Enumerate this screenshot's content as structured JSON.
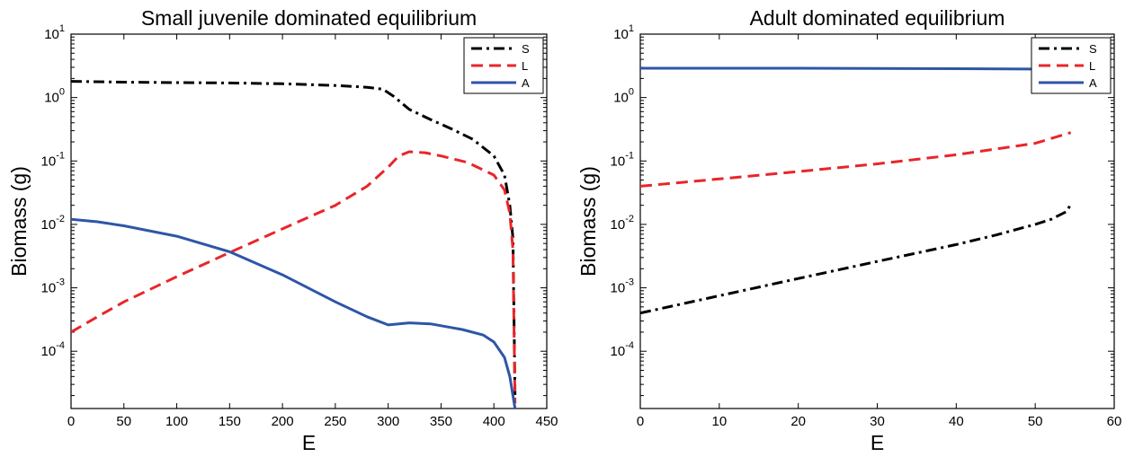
{
  "chart_data": [
    {
      "type": "line",
      "title": "Small juvenile dominated equilibrium",
      "xlabel": "E",
      "ylabel": "Biomass (g)",
      "xlim": [
        0,
        450
      ],
      "xticks": [
        "0",
        "50",
        "100",
        "150",
        "200",
        "250",
        "300",
        "350",
        "400",
        "450"
      ],
      "yscale": "log",
      "ylim": [
        1.25e-05,
        10
      ],
      "ytick_labels": [
        {
          "base": "10",
          "exp": "1",
          "value": 10
        },
        {
          "base": "10",
          "exp": "0",
          "value": 1
        },
        {
          "base": "10",
          "exp": "-1",
          "value": 0.1
        },
        {
          "base": "10",
          "exp": "-2",
          "value": 0.01
        },
        {
          "base": "10",
          "exp": "-3",
          "value": 0.001
        },
        {
          "base": "10",
          "exp": "-4",
          "value": 0.0001
        }
      ],
      "grid": false,
      "legend": "top-right",
      "series": [
        {
          "name": "S",
          "color": "#000000",
          "dash": "dashdot",
          "x": [
            0,
            50,
            100,
            150,
            200,
            250,
            280,
            295,
            305,
            320,
            340,
            360,
            380,
            400,
            410,
            415,
            418,
            420
          ],
          "y": [
            1.8,
            1.75,
            1.72,
            1.7,
            1.65,
            1.55,
            1.45,
            1.35,
            1.05,
            0.65,
            0.45,
            0.32,
            0.22,
            0.12,
            0.06,
            0.02,
            0.006,
            2e-05
          ]
        },
        {
          "name": "L",
          "color": "#e8262a",
          "dash": "dashed",
          "x": [
            0,
            25,
            50,
            100,
            150,
            200,
            250,
            280,
            300,
            310,
            320,
            335,
            350,
            375,
            400,
            410,
            415,
            418,
            420
          ],
          "y": [
            0.0002,
            0.00035,
            0.0006,
            0.0015,
            0.0036,
            0.0085,
            0.02,
            0.04,
            0.08,
            0.12,
            0.14,
            0.135,
            0.12,
            0.095,
            0.06,
            0.035,
            0.015,
            0.004,
            1.5e-05
          ]
        },
        {
          "name": "A",
          "color": "#2e55a8",
          "dash": "solid",
          "x": [
            0,
            25,
            50,
            100,
            150,
            200,
            250,
            280,
            300,
            310,
            320,
            340,
            370,
            390,
            400,
            410,
            415,
            418,
            420
          ],
          "y": [
            0.012,
            0.011,
            0.0095,
            0.0065,
            0.0037,
            0.0016,
            0.0006,
            0.00035,
            0.00026,
            0.00027,
            0.00028,
            0.00027,
            0.00022,
            0.00018,
            0.00014,
            8e-05,
            4e-05,
            2e-05,
            1.25e-05
          ]
        }
      ]
    },
    {
      "type": "line",
      "title": "Adult dominated equilibrium",
      "xlabel": "E",
      "ylabel": "Biomass (g)",
      "xlim": [
        0,
        60
      ],
      "xticks": [
        "0",
        "10",
        "20",
        "30",
        "40",
        "50",
        "60"
      ],
      "yscale": "log",
      "ylim": [
        1.25e-05,
        10
      ],
      "ytick_labels": [
        {
          "base": "10",
          "exp": "1",
          "value": 10
        },
        {
          "base": "10",
          "exp": "0",
          "value": 1
        },
        {
          "base": "10",
          "exp": "-1",
          "value": 0.1
        },
        {
          "base": "10",
          "exp": "-2",
          "value": 0.01
        },
        {
          "base": "10",
          "exp": "-3",
          "value": 0.001
        },
        {
          "base": "10",
          "exp": "-4",
          "value": 0.0001
        }
      ],
      "grid": false,
      "legend": "top-right",
      "series": [
        {
          "name": "S",
          "color": "#000000",
          "dash": "dashdot",
          "x": [
            0,
            10,
            20,
            30,
            40,
            45,
            50,
            52,
            54,
            54.5
          ],
          "y": [
            0.0004,
            0.00075,
            0.0014,
            0.0026,
            0.0048,
            0.0068,
            0.01,
            0.012,
            0.016,
            0.021
          ]
        },
        {
          "name": "L",
          "color": "#e8262a",
          "dash": "dashed",
          "x": [
            0,
            10,
            20,
            30,
            40,
            50,
            54.5
          ],
          "y": [
            0.04,
            0.052,
            0.068,
            0.09,
            0.125,
            0.19,
            0.28
          ]
        },
        {
          "name": "A",
          "color": "#2e55a8",
          "dash": "solid",
          "x": [
            0,
            20,
            40,
            54.5
          ],
          "y": [
            2.9,
            2.9,
            2.85,
            2.8
          ]
        }
      ]
    }
  ]
}
